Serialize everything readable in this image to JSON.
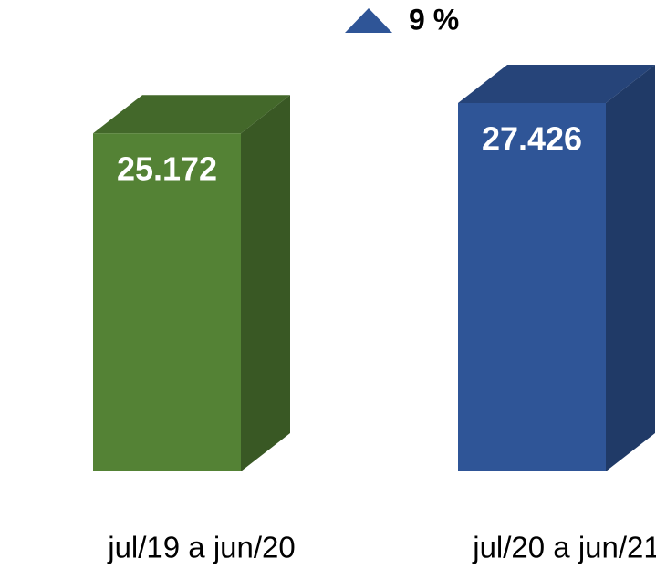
{
  "chart_data": {
    "type": "bar3d",
    "categories": [
      "jul/19 a jun/20",
      "jul/20 a jun/21"
    ],
    "values": [
      25172,
      27426
    ],
    "value_labels": [
      "25.172",
      "27.426"
    ],
    "colors": [
      "#548235",
      "#2f5597"
    ],
    "annotation": "9 %",
    "annotation_color": "#2f5597"
  }
}
